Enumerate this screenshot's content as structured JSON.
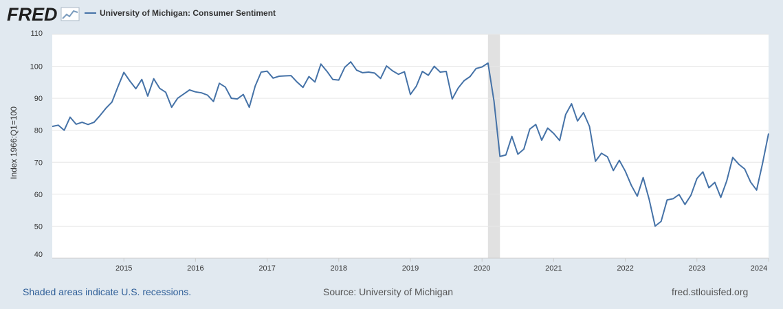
{
  "header": {
    "logo_text": "FRED",
    "legend_label": "University of Michigan: Consumer Sentiment"
  },
  "footer": {
    "recession_note": "Shaded areas indicate U.S. recessions.",
    "source": "Source: University of Michigan",
    "site": "fred.stlouisfed.org"
  },
  "colors": {
    "background": "#e1e9f0",
    "plot_background": "#ffffff",
    "series_line": "#4572a7",
    "recession_band": "#e1e1e1",
    "link": "#2f5f98",
    "footer_text": "#555555"
  },
  "chart_data": {
    "type": "line",
    "title": "University of Michigan: Consumer Sentiment",
    "xlabel": "",
    "ylabel": "Index 1966:Q1=100",
    "ylim": [
      40,
      110
    ],
    "yticks": [
      40,
      50,
      60,
      70,
      80,
      90,
      100,
      110
    ],
    "x_start_year": 2014,
    "x_end_year": 2024,
    "xticks": [
      "2015",
      "2016",
      "2017",
      "2018",
      "2019",
      "2020",
      "2021",
      "2022",
      "2023",
      "2024"
    ],
    "recessions": [
      {
        "start": 2020.083,
        "end": 2020.25
      }
    ],
    "series": [
      {
        "name": "University of Michigan: Consumer Sentiment",
        "frequency": "monthly",
        "start": "2014-01",
        "values": [
          81.2,
          81.6,
          80.0,
          84.1,
          81.9,
          82.5,
          81.8,
          82.5,
          84.6,
          86.9,
          88.8,
          93.6,
          98.1,
          95.4,
          93.0,
          95.9,
          90.7,
          96.1,
          93.1,
          91.9,
          87.2,
          90.0,
          91.3,
          92.6,
          92.0,
          91.7,
          91.0,
          89.0,
          94.7,
          93.5,
          90.0,
          89.8,
          91.2,
          87.2,
          93.8,
          98.2,
          98.5,
          96.3,
          96.9,
          97.0,
          97.1,
          95.1,
          93.4,
          96.8,
          95.1,
          100.7,
          98.5,
          95.9,
          95.7,
          99.7,
          101.4,
          98.8,
          98.0,
          98.2,
          97.9,
          96.2,
          100.1,
          98.6,
          97.5,
          98.3,
          91.2,
          93.8,
          98.4,
          97.2,
          100.0,
          98.2,
          98.4,
          89.8,
          93.2,
          95.5,
          96.8,
          99.3,
          99.8,
          101.0,
          89.1,
          71.8,
          72.3,
          78.1,
          72.5,
          74.1,
          80.4,
          81.8,
          76.9,
          80.7,
          79.0,
          76.8,
          84.9,
          88.3,
          82.9,
          85.5,
          81.2,
          70.3,
          72.8,
          71.7,
          67.4,
          70.6,
          67.2,
          62.8,
          59.4,
          65.2,
          58.4,
          50.0,
          51.5,
          58.2,
          58.6,
          59.9,
          56.8,
          59.7,
          64.9,
          67.0,
          62.0,
          63.7,
          59.0,
          64.2,
          71.5,
          69.4,
          67.9,
          63.8,
          61.3,
          69.7,
          79.0
        ]
      }
    ]
  }
}
